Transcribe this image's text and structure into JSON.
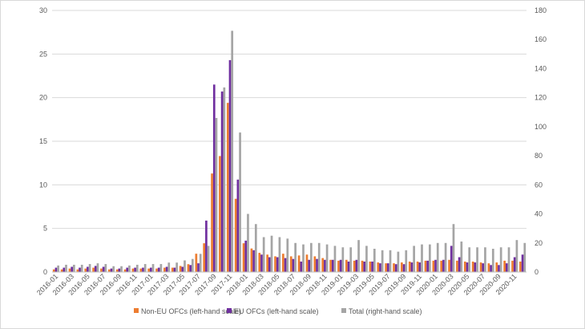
{
  "chart_data": {
    "type": "bar",
    "title": "",
    "xlabel": "",
    "ylabel": "",
    "ylim": [
      0,
      30
    ],
    "y2lim": [
      0,
      180
    ],
    "y_ticks": [
      0,
      5,
      10,
      15,
      20,
      25,
      30
    ],
    "y2_ticks": [
      0,
      20,
      40,
      60,
      80,
      100,
      120,
      140,
      160,
      180
    ],
    "grid": "horizontal",
    "legend_position": "bottom",
    "categories": [
      "2016-01",
      "2016-02",
      "2016-03",
      "2016-04",
      "2016-05",
      "2016-06",
      "2016-07",
      "2016-08",
      "2016-09",
      "2016-10",
      "2016-11",
      "2016-12",
      "2017-01",
      "2017-02",
      "2017-03",
      "2017-04",
      "2017-05",
      "2017-06",
      "2017-07",
      "2017-08",
      "2017-09",
      "2017-10",
      "2017-11",
      "2017-12",
      "2018-01",
      "2018-02",
      "2018-03",
      "2018-04",
      "2018-05",
      "2018-06",
      "2018-07",
      "2018-08",
      "2018-09",
      "2018-10",
      "2018-11",
      "2018-12",
      "2019-01",
      "2019-02",
      "2019-03",
      "2019-04",
      "2019-05",
      "2019-06",
      "2019-07",
      "2019-08",
      "2019-09",
      "2019-10",
      "2019-11",
      "2019-12",
      "2020-01",
      "2020-02",
      "2020-03",
      "2020-04",
      "2020-05",
      "2020-06",
      "2020-07",
      "2020-08",
      "2020-09",
      "2020-10",
      "2020-11",
      "2020-12"
    ],
    "x_tick_labels": [
      "2016-01",
      "2016-03",
      "2016-05",
      "2016-07",
      "2016-09",
      "2016-11",
      "2017-01",
      "2017-03",
      "2017-05",
      "2017-07",
      "2017-09",
      "2017-11",
      "2018-01",
      "2018-03",
      "2018-05",
      "2018-07",
      "2018-09",
      "2018-11",
      "2019-01",
      "2019-03",
      "2019-05",
      "2019-07",
      "2019-09",
      "2019-11",
      "2020-01",
      "2020-03",
      "2020-05",
      "2020-07",
      "2020-09",
      "2020-11"
    ],
    "series": [
      {
        "name": "Non-EU OFCs (left-hand scale)",
        "axis": "left",
        "color": "#ED7D31",
        "values": [
          0.3,
          0.3,
          0.4,
          0.3,
          0.4,
          0.5,
          0.4,
          0.3,
          0.3,
          0.3,
          0.4,
          0.4,
          0.4,
          0.4,
          0.5,
          0.5,
          0.7,
          0.9,
          2.1,
          3.3,
          11.3,
          13.3,
          19.4,
          8.4,
          3.3,
          2.7,
          2.2,
          2.0,
          1.8,
          2.1,
          1.8,
          1.9,
          2.0,
          1.8,
          1.6,
          1.4,
          1.3,
          1.4,
          1.3,
          1.3,
          1.2,
          1.1,
          1.0,
          1.0,
          1.1,
          1.2,
          1.2,
          1.3,
          1.3,
          1.3,
          1.4,
          1.3,
          1.2,
          1.2,
          1.1,
          1.0,
          1.1,
          1.3,
          1.3,
          1.2
        ]
      },
      {
        "name": "EU OFCs (left-hand scale)",
        "axis": "left",
        "color": "#7030A0",
        "values": [
          0.5,
          0.5,
          0.6,
          0.5,
          0.6,
          0.7,
          0.6,
          0.4,
          0.4,
          0.5,
          0.5,
          0.5,
          0.5,
          0.5,
          0.6,
          0.5,
          0.6,
          0.8,
          1.0,
          5.9,
          21.5,
          20.7,
          24.3,
          10.6,
          3.6,
          2.5,
          2.0,
          1.7,
          1.7,
          1.6,
          1.5,
          1.2,
          1.4,
          1.5,
          1.4,
          1.4,
          1.4,
          1.2,
          1.4,
          1.2,
          1.2,
          1.0,
          1.0,
          0.9,
          0.9,
          1.1,
          1.1,
          1.3,
          1.4,
          1.4,
          3.0,
          1.7,
          1.1,
          1.1,
          1.0,
          0.8,
          0.8,
          1.0,
          1.7,
          2.0
        ]
      },
      {
        "name": "Total (right-hand scale)",
        "axis": "right",
        "color": "#A5A5A5",
        "values": [
          4.5,
          5,
          5,
          5,
          5.5,
          6,
          5.5,
          4,
          4,
          4.5,
          5,
          5.5,
          5.5,
          5.5,
          6.5,
          6.5,
          8,
          9,
          12.5,
          18,
          106,
          127,
          166,
          96,
          40,
          33,
          24,
          25,
          24,
          23,
          20,
          19,
          20,
          20,
          19,
          18,
          17,
          17,
          22,
          18,
          16,
          15,
          15,
          14,
          15,
          18,
          19,
          19,
          20,
          20,
          33,
          21,
          17,
          17,
          17,
          16,
          17,
          17,
          22,
          20
        ]
      }
    ]
  }
}
